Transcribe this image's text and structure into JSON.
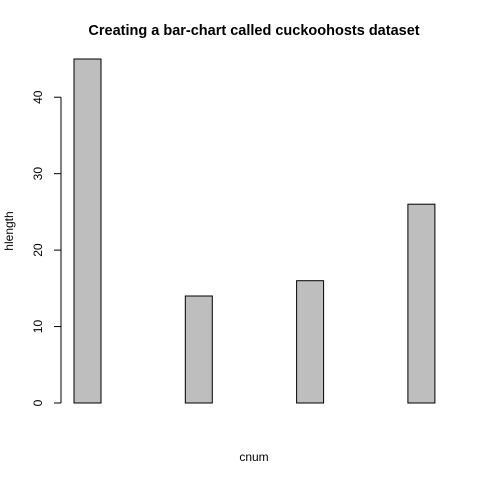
{
  "chart_data": {
    "type": "bar",
    "title": "Creating a bar-chart called cuckoohosts dataset",
    "xlabel": "cnum",
    "ylabel": "hlength",
    "values": [
      45,
      14,
      16,
      26
    ],
    "ylim": [
      0,
      45
    ],
    "yticks": [
      0,
      10,
      20,
      30,
      40
    ],
    "bar_fill": "#bebebe",
    "bar_stroke": "#000000",
    "grid": false,
    "legend": "none"
  }
}
